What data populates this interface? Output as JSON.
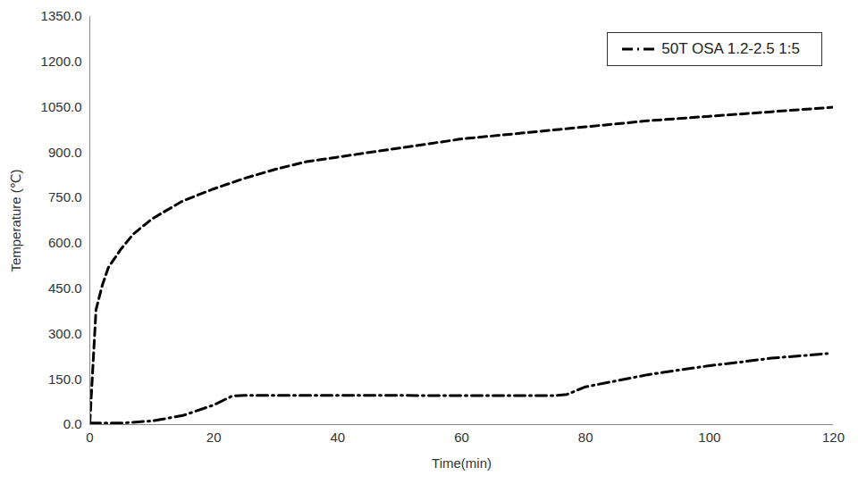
{
  "chart_data": {
    "type": "line",
    "x_label": "Time(min)",
    "y_label": "Temperature (℃)",
    "xlim": [
      0,
      120
    ],
    "xticks": [
      0,
      20,
      40,
      60,
      80,
      100,
      120
    ],
    "ylim": [
      0,
      1350
    ],
    "yticks": [
      {
        "value": 0,
        "label": "0.0"
      },
      {
        "value": 150,
        "label": "150.0"
      },
      {
        "value": 300,
        "label": "300.0"
      },
      {
        "value": 450,
        "label": "450.0"
      },
      {
        "value": 600,
        "label": "600.0"
      },
      {
        "value": 750,
        "label": "750.0"
      },
      {
        "value": 900,
        "label": "900.0"
      },
      {
        "value": 1050,
        "label": "1050.0"
      },
      {
        "value": 1200,
        "label": "1200.0"
      },
      {
        "value": 1350,
        "label": "1350.0"
      }
    ],
    "grid": false,
    "legend": "top-right",
    "series": [
      {
        "color": "#000000",
        "line_style": "dashed",
        "x": [
          0,
          1,
          2,
          3,
          5,
          7,
          10,
          15,
          20,
          25,
          30,
          35,
          40,
          50,
          60,
          70,
          80,
          90,
          100,
          110,
          120
        ],
        "values": [
          5,
          380,
          460,
          520,
          580,
          630,
          680,
          740,
          780,
          815,
          845,
          870,
          885,
          915,
          945,
          965,
          985,
          1005,
          1020,
          1035,
          1050
        ]
      },
      {
        "name": "50T OSA 1.2-2.5 1:5",
        "color": "#000000",
        "line_style": "dashdot",
        "x": [
          0,
          5,
          10,
          15,
          20,
          23,
          25,
          40,
          60,
          75,
          77,
          80,
          85,
          90,
          95,
          100,
          105,
          110,
          115,
          119
        ],
        "values": [
          5,
          5,
          12,
          30,
          65,
          95,
          97,
          97,
          96,
          96,
          100,
          125,
          145,
          165,
          180,
          195,
          207,
          220,
          228,
          235
        ]
      }
    ]
  }
}
